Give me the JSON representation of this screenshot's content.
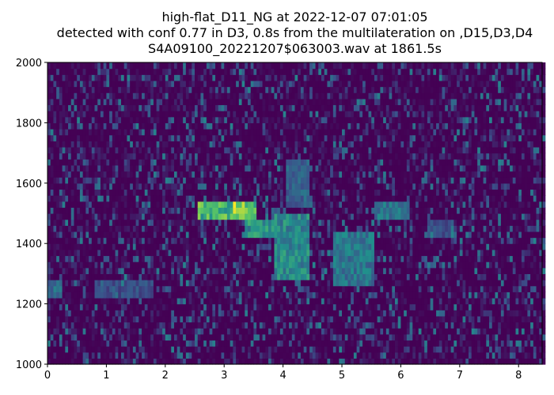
{
  "chart_data": {
    "type": "heatmap",
    "title_lines": [
      "high-flat_D11_NG at 2022-12-07 07:01:05",
      "detected with conf 0.77 in D3, 0.8s from the multilateration on ,D15,D3,D4",
      "S4A09100_20221207$063003.wav at 1861.5s"
    ],
    "xlabel": "",
    "ylabel": "",
    "xlim": [
      0,
      8.4
    ],
    "ylim": [
      1000,
      2000
    ],
    "x_ticks": [
      "0",
      "1",
      "2",
      "3",
      "4",
      "5",
      "6",
      "7",
      "8"
    ],
    "y_ticks": [
      "1000",
      "1200",
      "1400",
      "1600",
      "1800",
      "2000"
    ],
    "colormap": [
      "#440154",
      "#3b528b",
      "#21918c",
      "#5ec962",
      "#fde725"
    ],
    "grid": false,
    "features": [
      {
        "t": [
          2.5,
          3.5
        ],
        "f": [
          1490,
          1530
        ],
        "intensity": 0.85
      },
      {
        "t": [
          3.1,
          3.3
        ],
        "f": [
          1500,
          1520
        ],
        "intensity": 1.0
      },
      {
        "t": [
          3.3,
          3.9
        ],
        "f": [
          1425,
          1465
        ],
        "intensity": 0.65
      },
      {
        "t": [
          3.8,
          4.4
        ],
        "f": [
          1300,
          1480
        ],
        "intensity": 0.6
      },
      {
        "t": [
          4.0,
          4.4
        ],
        "f": [
          1540,
          1660
        ],
        "intensity": 0.4
      },
      {
        "t": [
          4.8,
          5.5
        ],
        "f": [
          1280,
          1420
        ],
        "intensity": 0.5
      },
      {
        "t": [
          5.5,
          6.1
        ],
        "f": [
          1495,
          1525
        ],
        "intensity": 0.5
      },
      {
        "t": [
          0.0,
          0.2
        ],
        "f": [
          1230,
          1270
        ],
        "intensity": 0.4
      },
      {
        "t": [
          0.8,
          1.8
        ],
        "f": [
          1240,
          1270
        ],
        "intensity": 0.3
      },
      {
        "t": [
          6.4,
          6.8
        ],
        "f": [
          1430,
          1470
        ],
        "intensity": 0.3
      }
    ]
  }
}
